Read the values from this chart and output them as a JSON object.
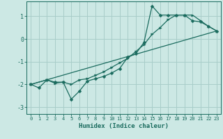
{
  "xlabel": "Humidex (Indice chaleur)",
  "bg_color": "#cce8e4",
  "line_color": "#1a6b5e",
  "grid_color": "#a8cdc9",
  "xlim": [
    -0.5,
    23.5
  ],
  "ylim": [
    -3.3,
    1.65
  ],
  "yticks": [
    -3,
    -2,
    -1,
    0,
    1
  ],
  "xticks": [
    0,
    1,
    2,
    3,
    4,
    5,
    6,
    7,
    8,
    9,
    10,
    11,
    12,
    13,
    14,
    15,
    16,
    17,
    18,
    19,
    20,
    21,
    22,
    23
  ],
  "line1_x": [
    0,
    1,
    2,
    3,
    4,
    5,
    6,
    7,
    8,
    9,
    10,
    11,
    12,
    13,
    14,
    15,
    16,
    17,
    18,
    19,
    20,
    21,
    22,
    23
  ],
  "line1_y": [
    -2.0,
    -2.15,
    -1.8,
    -1.9,
    -1.9,
    -2.65,
    -2.3,
    -1.85,
    -1.75,
    -1.65,
    -1.5,
    -1.3,
    -0.8,
    -0.65,
    -0.15,
    1.45,
    1.05,
    1.05,
    1.05,
    1.05,
    0.8,
    0.75,
    0.55,
    0.35
  ],
  "line2_x": [
    0,
    2,
    3,
    4,
    5,
    6,
    7,
    8,
    9,
    10,
    11,
    12,
    13,
    14,
    15,
    16,
    17,
    18,
    19,
    20,
    21,
    22,
    23
  ],
  "line2_y": [
    -2.0,
    -1.8,
    -1.95,
    -1.9,
    -2.0,
    -1.8,
    -1.75,
    -1.6,
    -1.45,
    -1.25,
    -1.05,
    -0.85,
    -0.55,
    -0.25,
    0.2,
    0.5,
    0.85,
    1.05,
    1.05,
    1.05,
    0.8,
    0.55,
    0.35
  ],
  "line3_x": [
    0,
    23
  ],
  "line3_y": [
    -2.0,
    0.35
  ]
}
